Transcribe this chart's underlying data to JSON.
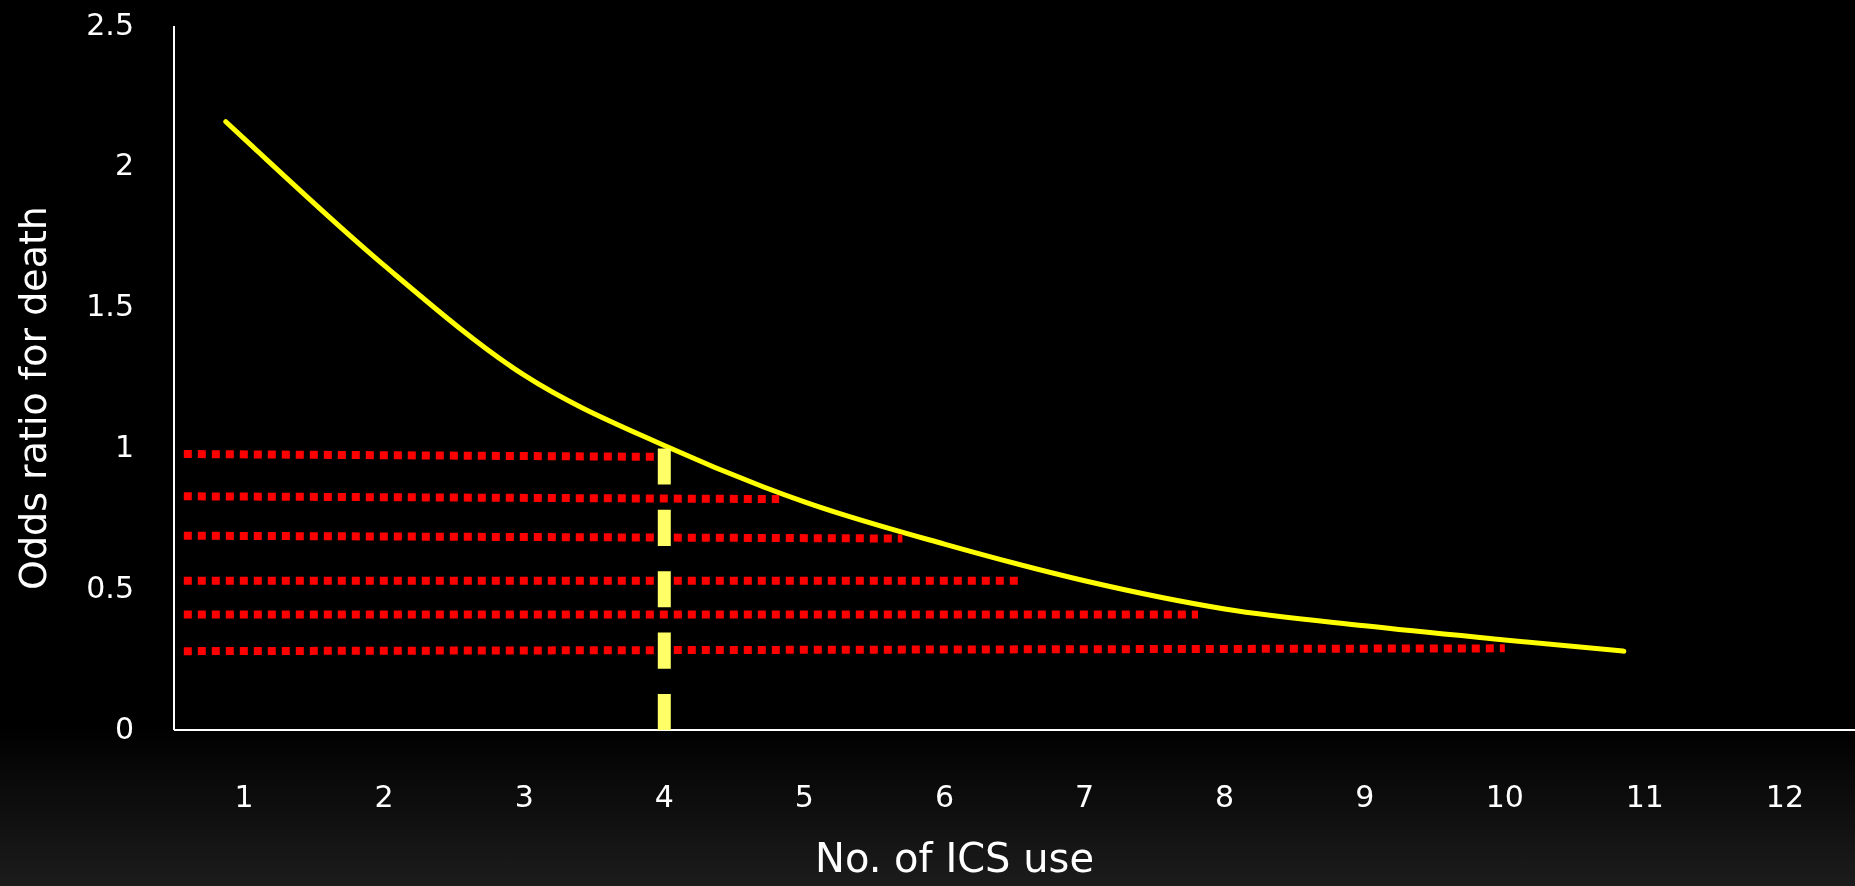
{
  "chart_data": {
    "type": "line",
    "xlabel": "No. of ICS use",
    "ylabel": "Odds ratio for death",
    "xlim": [
      0.5,
      12.5
    ],
    "xticks": [
      1,
      2,
      3,
      4,
      5,
      6,
      7,
      8,
      9,
      10,
      11,
      12
    ],
    "ylim": [
      0,
      2.5
    ],
    "yticks": [
      0,
      0.5,
      1,
      1.5,
      2,
      2.5
    ],
    "grid": false,
    "series": [
      {
        "color": "#ffff00",
        "line_style": "solid",
        "x": [
          0.87,
          1,
          2,
          3,
          4,
          5,
          6,
          7,
          8,
          9,
          10,
          10.85
        ],
        "values": [
          2.16,
          2.1,
          1.65,
          1.26,
          1.01,
          0.81,
          0.66,
          0.53,
          0.43,
          0.37,
          0.32,
          0.28
        ]
      },
      {
        "color": "#ff0000",
        "line_style": "dotted",
        "x": [
          0.57,
          3.95
        ],
        "values": [
          0.98,
          0.97
        ]
      },
      {
        "color": "#ff0000",
        "line_style": "dotted",
        "x": [
          0.57,
          4.82
        ],
        "values": [
          0.83,
          0.82
        ]
      },
      {
        "color": "#ff0000",
        "line_style": "dotted",
        "x": [
          0.57,
          5.7
        ],
        "values": [
          0.69,
          0.68
        ]
      },
      {
        "color": "#ff0000",
        "line_style": "dotted",
        "x": [
          0.57,
          6.56
        ],
        "values": [
          0.53,
          0.53
        ]
      },
      {
        "color": "#ff0000",
        "line_style": "dotted",
        "x": [
          0.57,
          7.81
        ],
        "values": [
          0.41,
          0.41
        ]
      },
      {
        "color": "#ff0000",
        "line_style": "dotted",
        "x": [
          0.57,
          10.0
        ],
        "values": [
          0.28,
          0.29
        ]
      },
      {
        "color": "#ffff66",
        "line_style": "dashed",
        "x": [
          4,
          4
        ],
        "values": [
          0,
          1.0
        ]
      }
    ]
  }
}
